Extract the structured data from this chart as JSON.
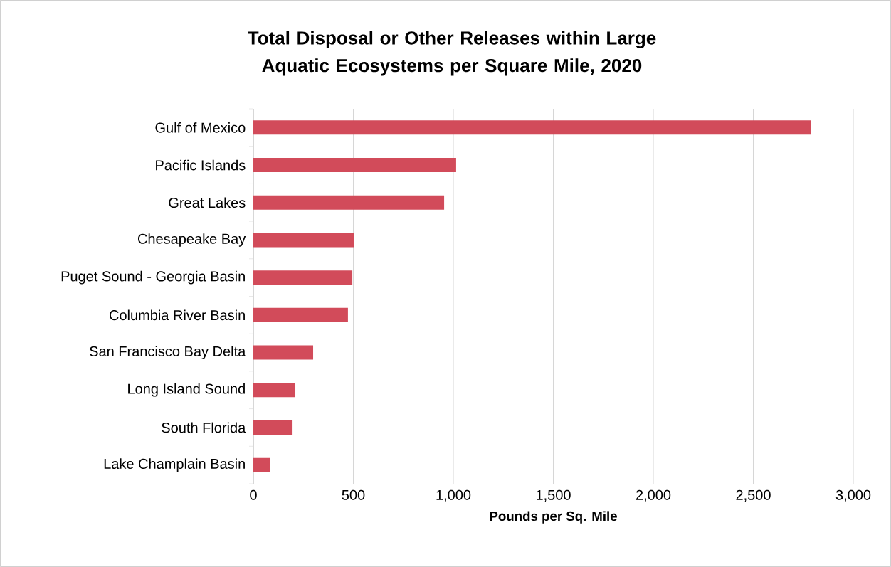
{
  "chart_data": {
    "type": "bar",
    "orientation": "horizontal",
    "title": "Total Disposal or Other Releases within Large Aquatic Ecosystems per Square Mile, 2020",
    "xlabel": "Pounds per Sq. Mile",
    "categories": [
      "Gulf of Mexico",
      "Pacific Islands",
      "Great Lakes",
      "Chesapeake Bay",
      "Puget Sound - Georgia Basin",
      "Columbia River Basin",
      "San Francisco Bay Delta",
      "Long Island Sound",
      "South Florida",
      "Lake Champlain Basin"
    ],
    "values": [
      2790,
      1014,
      954,
      505,
      495,
      473,
      299,
      210,
      196,
      82
    ],
    "color": "#d24b5a",
    "xlim": [
      0,
      3000
    ],
    "xticks": [
      {
        "value": 0,
        "label": "0"
      },
      {
        "value": 500,
        "label": "500"
      },
      {
        "value": 1000,
        "label": "1,000"
      },
      {
        "value": 1500,
        "label": "1,500"
      },
      {
        "value": 2000,
        "label": "2,000"
      },
      {
        "value": 2500,
        "label": "2,500"
      },
      {
        "value": 3000,
        "label": "3,000"
      }
    ],
    "grid": "x"
  }
}
